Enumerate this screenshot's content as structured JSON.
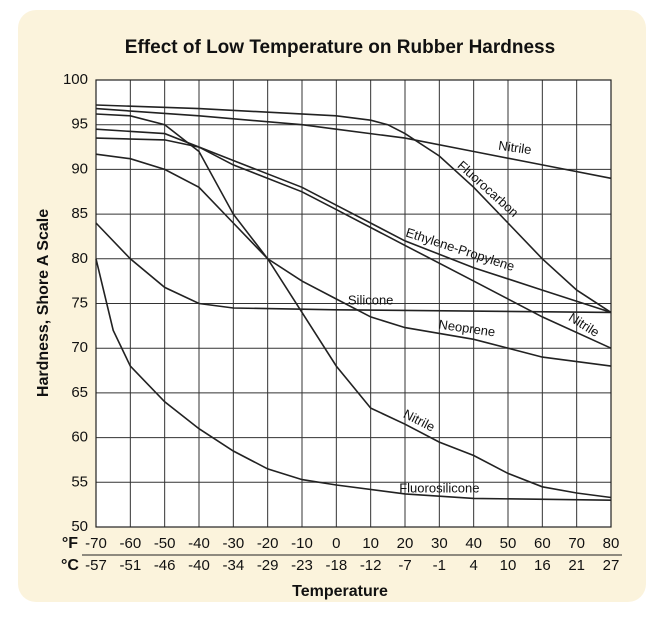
{
  "chart_data": {
    "type": "line",
    "title": "Effect of Low Temperature on Rubber Hardness",
    "y_label": "Hardness, Shore A Scale",
    "x_label": "Temperature",
    "x_unit_label": "°F",
    "x2_unit_label": "°C",
    "xlim": [
      -70,
      80
    ],
    "ylim": [
      50,
      100
    ],
    "xticks": [
      -70,
      -60,
      -50,
      -40,
      -30,
      -20,
      -10,
      0,
      10,
      20,
      30,
      40,
      50,
      60,
      70,
      80
    ],
    "x2_tick_labels": [
      -57,
      -51,
      -46,
      -40,
      -34,
      -29,
      -23,
      -18,
      -12,
      -7,
      -1,
      4,
      10,
      16,
      21,
      27
    ],
    "yticks": [
      50,
      55,
      60,
      65,
      70,
      75,
      80,
      85,
      90,
      95,
      100
    ],
    "grid": true,
    "series": [
      {
        "name": "Nitrile",
        "color": "#222222",
        "x": [
          -70,
          -40,
          -10,
          0,
          20,
          40,
          60,
          80
        ],
        "values": [
          96.8,
          96,
          95,
          94.5,
          93.5,
          92,
          90.5,
          89
        ]
      },
      {
        "name": "Fluorocarbon",
        "color": "#222222",
        "x": [
          -70,
          -40,
          0,
          10,
          15,
          20,
          30,
          40,
          50,
          60,
          70,
          80
        ],
        "values": [
          97.2,
          96.8,
          96,
          95.5,
          95,
          94,
          91.5,
          88,
          84,
          80,
          76.5,
          74
        ]
      },
      {
        "name": "Ethylene-Propylene",
        "color": "#222222",
        "x": [
          -70,
          -50,
          -30,
          -10,
          0,
          20,
          40,
          60,
          80
        ],
        "values": [
          94.5,
          94,
          91,
          88,
          86,
          82,
          79,
          76.5,
          74
        ]
      },
      {
        "name": "Silicone",
        "color": "#222222",
        "x": [
          -70,
          -60,
          -50,
          -40,
          -30,
          0,
          80
        ],
        "values": [
          84,
          80,
          76.8,
          75,
          74.5,
          74.3,
          74
        ]
      },
      {
        "name": "Nitrile",
        "color": "#222222",
        "x": [
          -70,
          -50,
          -40,
          -30,
          -10,
          0,
          20,
          40,
          60,
          80
        ],
        "values": [
          93.5,
          93.3,
          92.5,
          90.5,
          87.5,
          85.5,
          81.5,
          77.5,
          73.5,
          70
        ]
      },
      {
        "name": "Neoprene",
        "color": "#222222",
        "x": [
          -70,
          -60,
          -50,
          -40,
          -30,
          -20,
          -10,
          0,
          10,
          20,
          40,
          60,
          80
        ],
        "values": [
          91.7,
          91.2,
          90,
          88,
          84,
          80,
          77.5,
          75.5,
          73.5,
          72.3,
          71,
          69,
          68
        ]
      },
      {
        "name": "Nitrile",
        "color": "#222222",
        "x": [
          -70,
          -60,
          -50,
          -40,
          -30,
          -20,
          -10,
          0,
          10,
          20,
          30,
          40,
          50,
          60,
          70,
          80
        ],
        "values": [
          96.2,
          96,
          95,
          92,
          85,
          80,
          74,
          68,
          63.3,
          61.5,
          59.5,
          58,
          56,
          54.5,
          53.8,
          53.3
        ]
      },
      {
        "name": "Fluorosilicone",
        "color": "#222222",
        "x": [
          -70,
          -65,
          -60,
          -50,
          -40,
          -30,
          -20,
          -10,
          0,
          20,
          40,
          80
        ],
        "values": [
          80,
          72,
          68,
          64,
          61,
          58.5,
          56.5,
          55.3,
          54.7,
          53.7,
          53.2,
          53
        ]
      }
    ]
  }
}
